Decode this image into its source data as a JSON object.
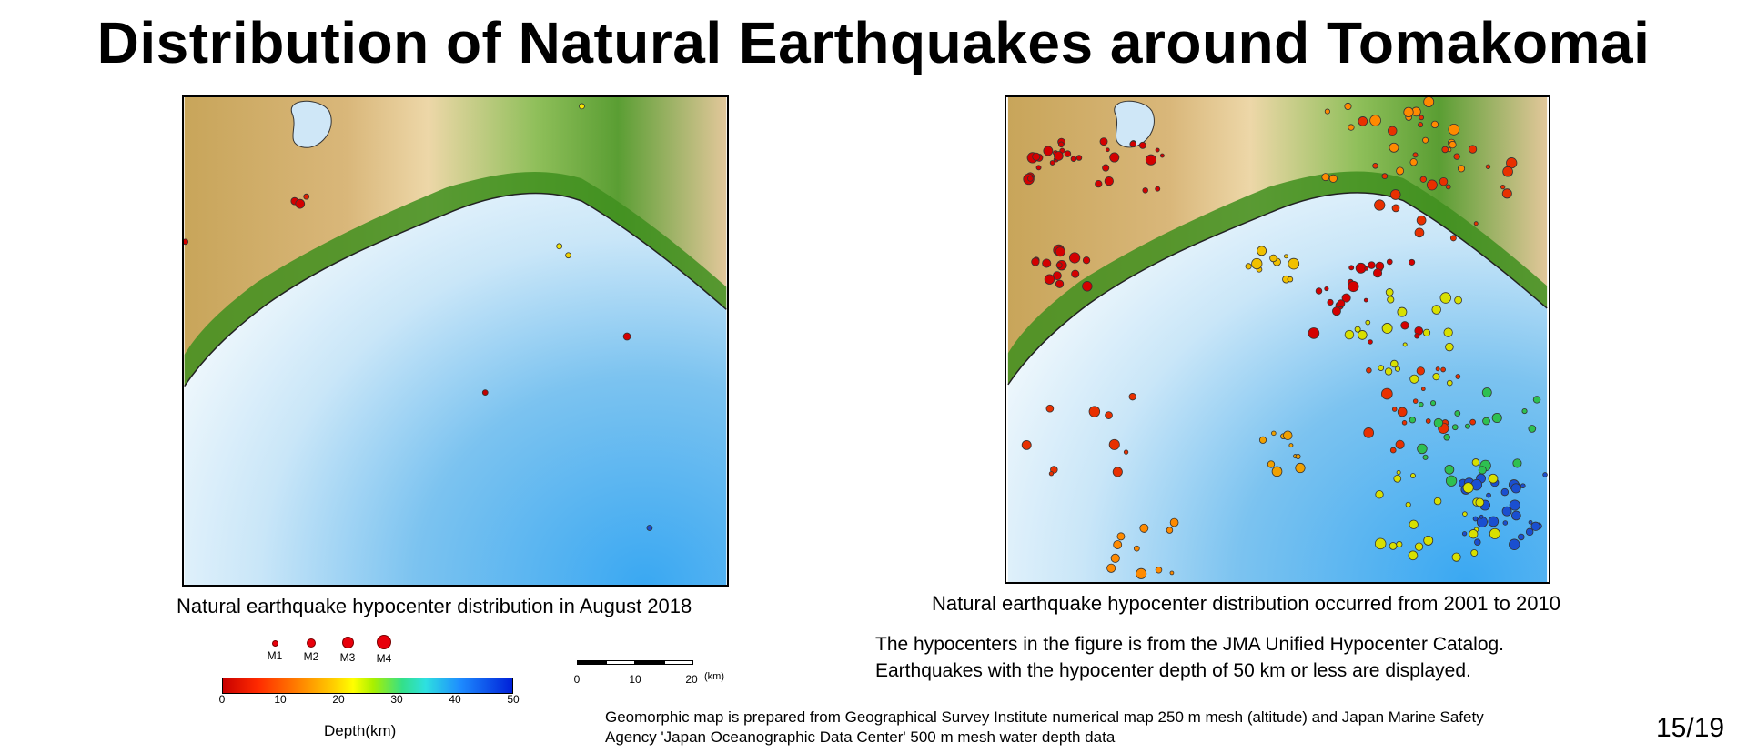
{
  "title": "Distribution of Natural Earthquakes around Tomakomai",
  "left_map": {
    "caption": "Natural earthquake hypocenter distribution in August 2018"
  },
  "right_map": {
    "caption": "Natural earthquake hypocenter distribution occurred from 2001 to 2010"
  },
  "notes": {
    "line1": "The hypocenters in the figure is from the JMA Unified Hypocenter Catalog.",
    "line2": "Earthquakes with the hypocenter depth of 50 km or less are displayed."
  },
  "source": {
    "line1": "Geomorphic map is prepared from Geographical Survey Institute numerical map 250 m mesh (altitude) and Japan Marine Safety",
    "line2": "Agency 'Japan Oceanographic Data Center' 500 m mesh water depth data"
  },
  "page_number": "15/19",
  "magnitude_legend": [
    "M1",
    "M2",
    "M3",
    "M4"
  ],
  "depth_legend": {
    "title": "Depth(km)",
    "ticks": [
      "0",
      "10",
      "20",
      "30",
      "40",
      "50"
    ],
    "colors": [
      "#c80000",
      "#ff7a00",
      "#ffff00",
      "#33e08a",
      "#1e8cff",
      "#0020d8"
    ]
  },
  "scale_bar": {
    "labels": [
      "0",
      "10",
      "20"
    ],
    "unit": "(km)"
  },
  "colors": {
    "land_low": "#3f8f1f",
    "land_mid": "#9cc26a",
    "land_high": "#e7c58e",
    "land_peak": "#a88a3a",
    "sea_shallow": "#eaf5fb",
    "sea_mid": "#9ed2f2",
    "sea_deep": "#3eaaf2",
    "lake": "#cfe7f7"
  }
}
